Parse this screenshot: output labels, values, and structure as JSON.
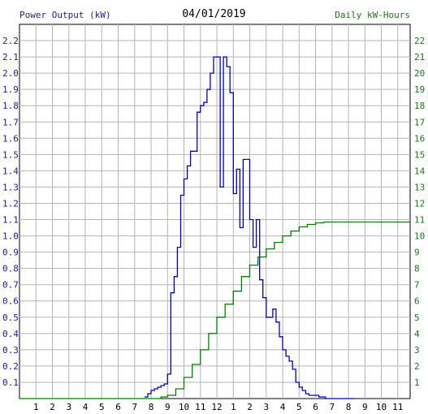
{
  "header": {
    "left_label": "Power Output (kW)",
    "date": "04/01/2019",
    "right_label": "Daily kW-Hours"
  },
  "chart_data": {
    "type": "line",
    "x_tick_labels": [
      "1",
      "2",
      "3",
      "4",
      "5",
      "6",
      "7",
      "8",
      "9",
      "10",
      "11",
      "12",
      "1",
      "2",
      "3",
      "4",
      "5",
      "6",
      "7",
      "8",
      "9",
      "10",
      "11"
    ],
    "xlim": [
      0,
      23.75
    ],
    "left_axis": {
      "ylim": [
        0,
        2.3
      ],
      "tick_labels": [
        "0.1",
        "0.2",
        "0.3",
        "0.4",
        "0.5",
        "0.6",
        "0.7",
        "0.8",
        "0.9",
        "1.0",
        "1.1",
        "1.2",
        "1.3",
        "1.4",
        "1.5",
        "1.6",
        "1.7",
        "1.8",
        "1.9",
        "2.0",
        "2.1",
        "2.2"
      ]
    },
    "right_axis": {
      "ylim": [
        0,
        23
      ],
      "tick_labels": [
        "1",
        "2",
        "3",
        "4",
        "5",
        "6",
        "7",
        "8",
        "9",
        "10",
        "11",
        "12",
        "13",
        "14",
        "15",
        "16",
        "17",
        "18",
        "19",
        "20",
        "21",
        "22"
      ]
    },
    "grid": true,
    "colors": {
      "power": "#0000c0",
      "energy": "#008000",
      "grid": "#b4b4b4",
      "left_axis_text": "#1a1aa0",
      "right_axis_text": "#1a7a1a"
    },
    "series": [
      {
        "axis": "left",
        "x": [
          7.6,
          7.8,
          8.0,
          8.2,
          8.4,
          8.6,
          8.8,
          9.0,
          9.2,
          9.4,
          9.6,
          9.8,
          10.0,
          10.2,
          10.4,
          10.6,
          10.8,
          11.0,
          11.2,
          11.4,
          11.6,
          11.8,
          12.0,
          12.2,
          12.4,
          12.6,
          12.8,
          13.0,
          13.2,
          13.4,
          13.6,
          13.8,
          14.0,
          14.2,
          14.4,
          14.6,
          14.8,
          15.0,
          15.2,
          15.4,
          15.6,
          15.8,
          16.0,
          16.2,
          16.4,
          16.6,
          16.8,
          17.0,
          17.2,
          17.4,
          17.6,
          17.8,
          18.0,
          18.2,
          18.4,
          18.6,
          18.8,
          19.0,
          19.2,
          19.4,
          19.6,
          19.8,
          20.0,
          20.2,
          20.4
        ],
        "y": [
          0.01,
          0.03,
          0.05,
          0.06,
          0.07,
          0.08,
          0.09,
          0.15,
          0.65,
          0.75,
          0.93,
          1.25,
          1.35,
          1.43,
          1.52,
          1.52,
          1.76,
          1.8,
          1.82,
          1.9,
          2.0,
          2.1,
          2.1,
          1.3,
          2.1,
          2.04,
          1.88,
          1.26,
          1.41,
          1.05,
          1.47,
          1.47,
          1.1,
          0.93,
          1.1,
          0.73,
          0.62,
          0.5,
          0.5,
          0.55,
          0.47,
          0.38,
          0.3,
          0.26,
          0.23,
          0.18,
          0.1,
          0.07,
          0.05,
          0.03,
          0.02,
          0.02,
          0.02,
          0.01,
          0.01,
          0.0,
          0.0,
          0.0,
          0.0,
          0.0,
          0.0,
          0.0,
          0.0,
          0.0,
          0.0
        ]
      },
      {
        "axis": "right",
        "x": [
          0,
          7.6,
          8.6,
          9.0,
          9.5,
          10.0,
          10.5,
          11.0,
          11.5,
          12.0,
          12.5,
          13.0,
          13.5,
          14.0,
          14.5,
          15.0,
          15.5,
          16.0,
          16.5,
          17.0,
          17.5,
          18.0,
          18.5,
          19.0,
          19.5,
          20.0,
          20.5,
          21.0,
          22.0,
          23.75
        ],
        "y": [
          0,
          0,
          0.1,
          0.2,
          0.6,
          1.3,
          2.1,
          3.0,
          4.0,
          5.0,
          5.8,
          6.6,
          7.5,
          8.2,
          8.7,
          9.2,
          9.6,
          10.0,
          10.3,
          10.55,
          10.7,
          10.8,
          10.85,
          10.85,
          10.85,
          10.85,
          10.85,
          10.85,
          10.85,
          10.85
        ]
      }
    ]
  }
}
